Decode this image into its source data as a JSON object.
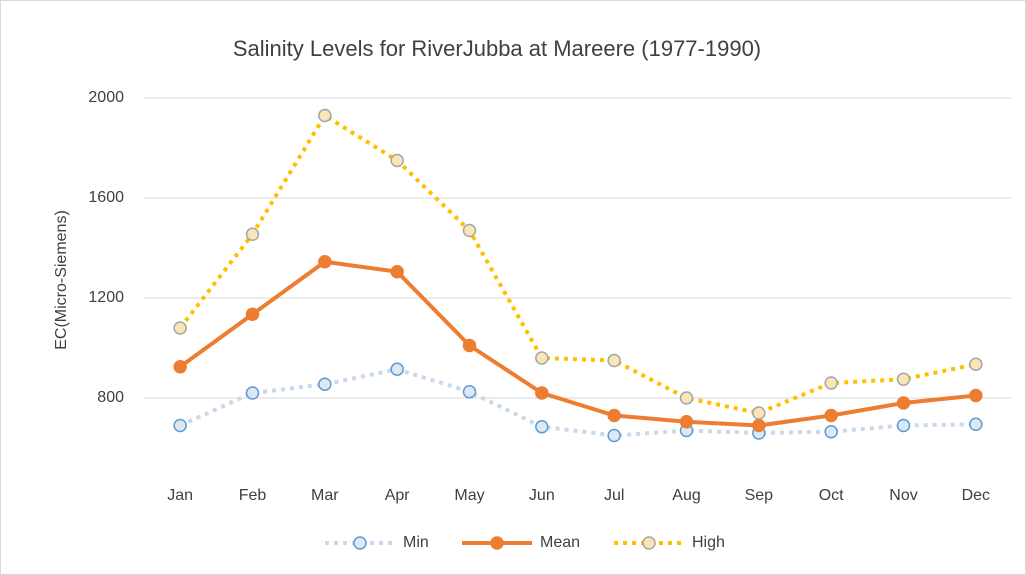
{
  "chart_data": {
    "type": "line",
    "title": "Salinity Levels for RiverJubba at Mareere (1977-1990)",
    "y_label": "EC(Micro-Siemens)",
    "categories": [
      "Jan",
      "Feb",
      "Mar",
      "Apr",
      "May",
      "Jun",
      "Jul",
      "Aug",
      "Sep",
      "Oct",
      "Nov",
      "Dec"
    ],
    "series": [
      {
        "name": "Min",
        "color": "#c9d8ea",
        "marker_stroke": "#5b9bd5",
        "marker_fill": "#dde8f3",
        "dash": true,
        "values": [
          690,
          820,
          855,
          915,
          825,
          685,
          650,
          670,
          660,
          665,
          690,
          695
        ]
      },
      {
        "name": "Mean",
        "color": "#ed7d31",
        "marker_stroke": "#ed7d31",
        "marker_fill": "#ed7d31",
        "dash": false,
        "values": [
          925,
          1135,
          1345,
          1305,
          1010,
          820,
          730,
          705,
          690,
          730,
          780,
          810
        ]
      },
      {
        "name": "High",
        "color": "#ffc000",
        "marker_stroke": "#a5a5a5",
        "marker_fill": "#f8e6b8",
        "dash": true,
        "values": [
          1080,
          1455,
          1930,
          1750,
          1470,
          960,
          950,
          800,
          740,
          860,
          875,
          935
        ]
      }
    ],
    "ylim": [
      500,
      2080
    ],
    "yticks": [
      800,
      1200,
      1600,
      2000
    ],
    "grid": true,
    "legend": "bottom"
  }
}
